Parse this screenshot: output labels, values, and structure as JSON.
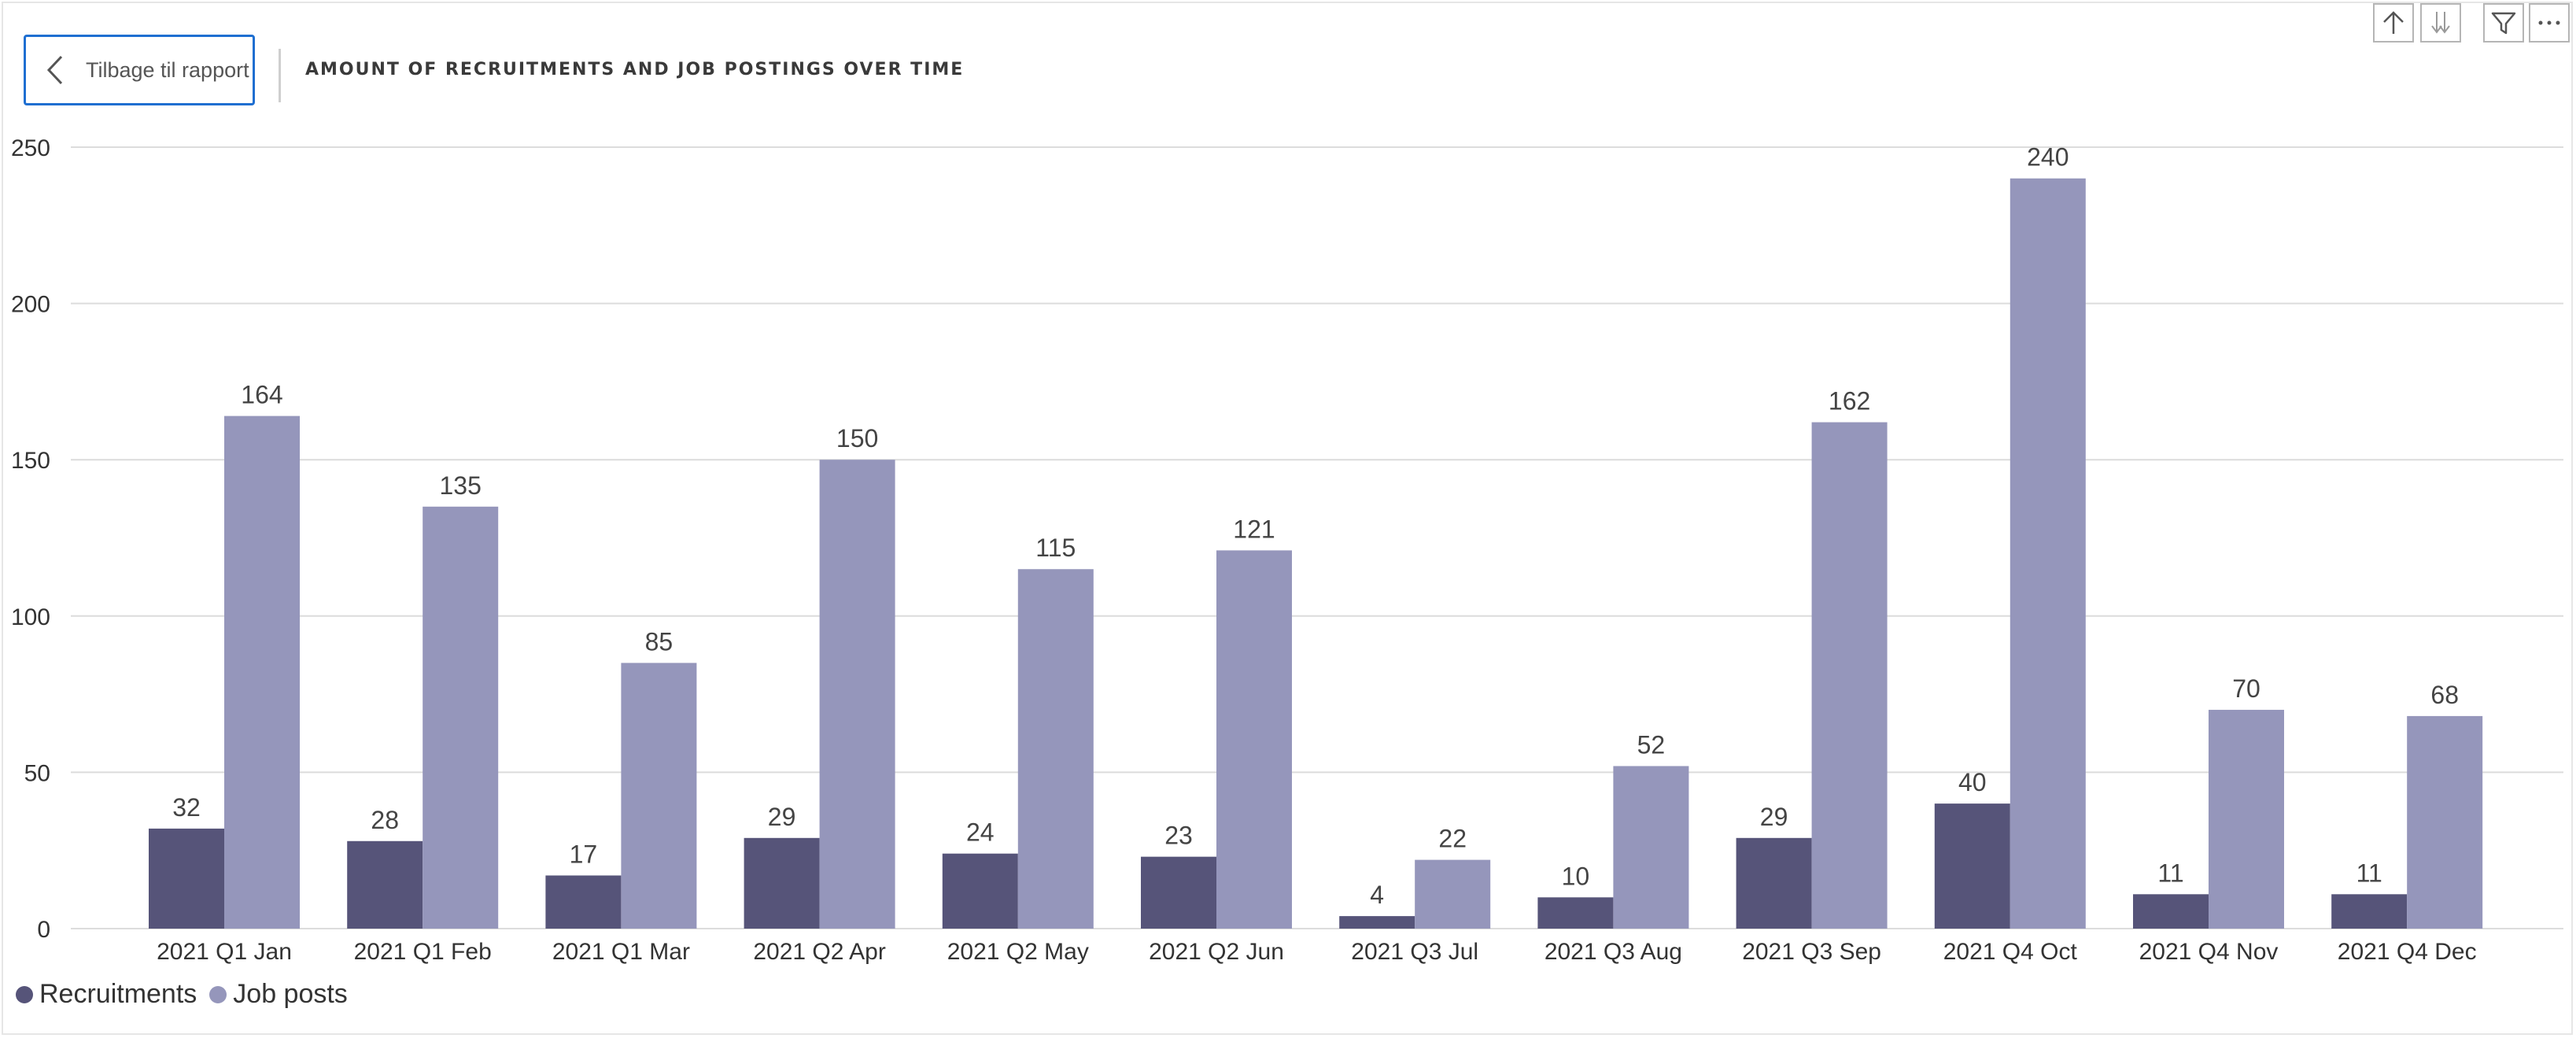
{
  "header": {
    "back_label": "Tilbage til rapport",
    "title": "AMOUNT OF RECRUITMENTS AND JOB POSTINGS OVER TIME"
  },
  "toolbar": {
    "icons": [
      "drill-up-icon",
      "drill-down-icon",
      "filter-icon",
      "more-options-icon"
    ]
  },
  "colors": {
    "recruitments": "#565479",
    "job_posts": "#9596bb",
    "grid": "#dcdcdc",
    "text": "#333333"
  },
  "legend": {
    "items": [
      {
        "label": "Recruitments",
        "color": "#565479"
      },
      {
        "label": "Job posts",
        "color": "#9596bb"
      }
    ]
  },
  "chart_data": {
    "type": "bar",
    "title": "AMOUNT OF RECRUITMENTS AND JOB POSTINGS OVER TIME",
    "categories": [
      "2021 Q1 Jan",
      "2021 Q1 Feb",
      "2021 Q1 Mar",
      "2021 Q2 Apr",
      "2021 Q2 May",
      "2021 Q2 Jun",
      "2021 Q3 Jul",
      "2021 Q3 Aug",
      "2021 Q3 Sep",
      "2021 Q4 Oct",
      "2021 Q4 Nov",
      "2021 Q4 Dec"
    ],
    "series": [
      {
        "name": "Recruitments",
        "values": [
          32,
          28,
          17,
          29,
          24,
          23,
          4,
          10,
          29,
          40,
          11,
          11
        ]
      },
      {
        "name": "Job posts",
        "values": [
          164,
          135,
          85,
          150,
          115,
          121,
          22,
          52,
          162,
          240,
          70,
          68
        ]
      }
    ],
    "yticks": [
      0,
      50,
      100,
      150,
      200,
      250
    ],
    "ylim": [
      0,
      250
    ],
    "xlabel": "",
    "ylabel": "",
    "grid": true,
    "legend_position": "bottom-left"
  }
}
